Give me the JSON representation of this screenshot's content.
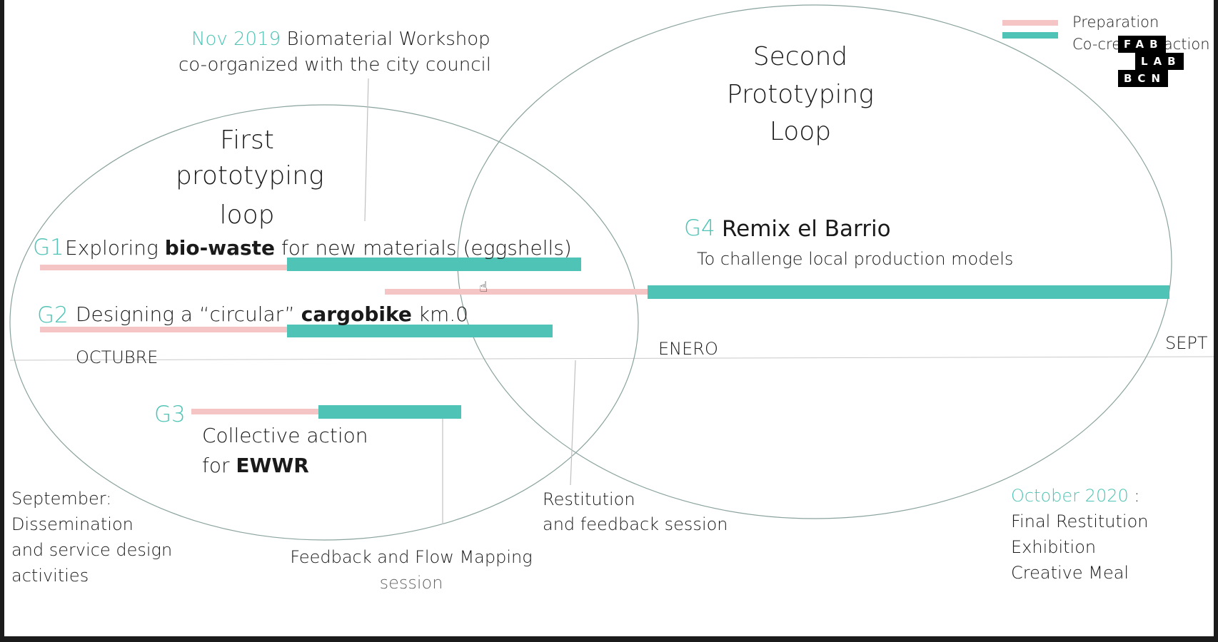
{
  "legend": {
    "preparation_label": "Preparation",
    "cocreation_label": "Co-creation action",
    "preparation_color": "#f5c4c4",
    "cocreation_color": "#4fc3b5"
  },
  "logo": {
    "line1": "FAB",
    "line2": "LAB",
    "line3": "BCN"
  },
  "loops": {
    "first": {
      "line1": "First",
      "line2": "prototyping",
      "line3": "loop"
    },
    "second": {
      "line1": "Second",
      "line2": "Prototyping",
      "line3": "Loop"
    }
  },
  "workshop": {
    "date": "Nov 2019",
    "line1_rest": "Biomaterial Workshop",
    "line2": "co-organized with the city council"
  },
  "groups": {
    "g1": {
      "code": "G1",
      "pre": "Exploring",
      "bold": "bio-waste",
      "post": "for new materials (eggshells)"
    },
    "g2": {
      "code": "G2",
      "pre": "Designing a “circular”",
      "bold": "cargobike",
      "post": "km.0"
    },
    "g3": {
      "code": "G3",
      "line1": "Collective action",
      "line2_pre": "for",
      "line2_bold": "EWWR"
    },
    "g4": {
      "code": "G4",
      "title": "Remix el Barrio",
      "subtitle": "To challenge local production models"
    }
  },
  "timeline": {
    "octubre": "OCTUBRE",
    "enero": "ENERO",
    "sept": "SEPT"
  },
  "sessions": {
    "september": {
      "line1": "September:",
      "line2": "Dissemination",
      "line3": "and service design",
      "line4": "activities"
    },
    "feedback_flow": {
      "line1": "Feedback and Flow Mapping",
      "line2": "session"
    },
    "restitution": {
      "line1": "Restitution",
      "line2": "and feedback session"
    },
    "october": {
      "date": "October 2020",
      "colon": ":",
      "line1": "Final Restitution",
      "line2": "Exhibition",
      "line3": "Creative Meal"
    }
  }
}
